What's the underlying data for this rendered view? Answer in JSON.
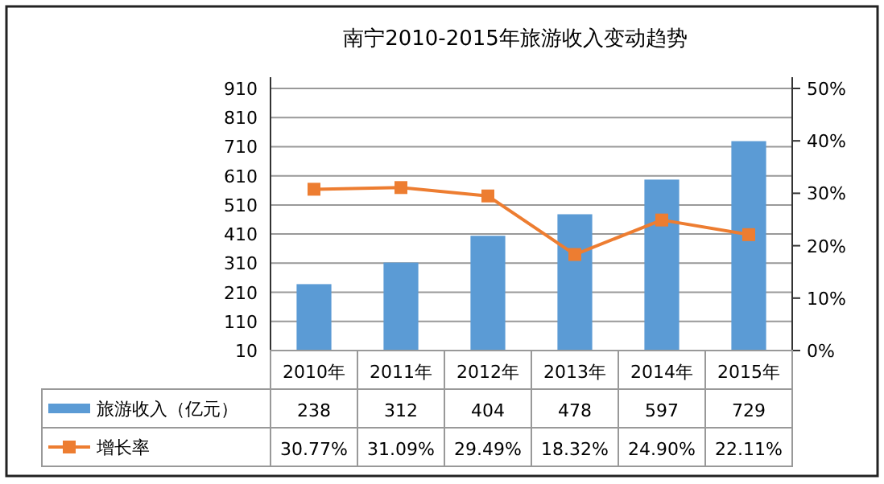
{
  "chart_data": {
    "type": "bar",
    "title": "南宁2010-2015年旅游收入变动趋势",
    "categories": [
      "2010年",
      "2011年",
      "2012年",
      "2013年",
      "2014年",
      "2015年"
    ],
    "series": [
      {
        "name": "旅游收入（亿元）",
        "color": "#5b9bd5",
        "values": [
          238,
          312,
          404,
          478,
          597,
          729
        ],
        "value_labels": [
          "238",
          "312",
          "404",
          "478",
          "597",
          "729"
        ]
      },
      {
        "name": "增长率",
        "type": "line",
        "axis": "y2",
        "color": "#ed7d31",
        "marker": "square",
        "values": [
          30.77,
          31.09,
          29.49,
          18.32,
          24.9,
          22.11
        ],
        "value_labels": [
          "30.77%",
          "31.09%",
          "29.49%",
          "18.32%",
          "24.90%",
          "22.11%"
        ]
      }
    ],
    "ylim": [
      10,
      910
    ],
    "yticks": [
      10,
      110,
      210,
      310,
      410,
      510,
      610,
      710,
      810,
      910
    ],
    "y2lim": [
      0,
      50
    ],
    "y2ticks": [
      {
        "value": 0,
        "label": "0%"
      },
      {
        "value": 10,
        "label": "10%"
      },
      {
        "value": 20,
        "label": "20%"
      },
      {
        "value": 30,
        "label": "30%"
      },
      {
        "value": 40,
        "label": "40%"
      },
      {
        "value": 50,
        "label": "50%"
      }
    ],
    "grid": "y",
    "legend": "bottom"
  }
}
